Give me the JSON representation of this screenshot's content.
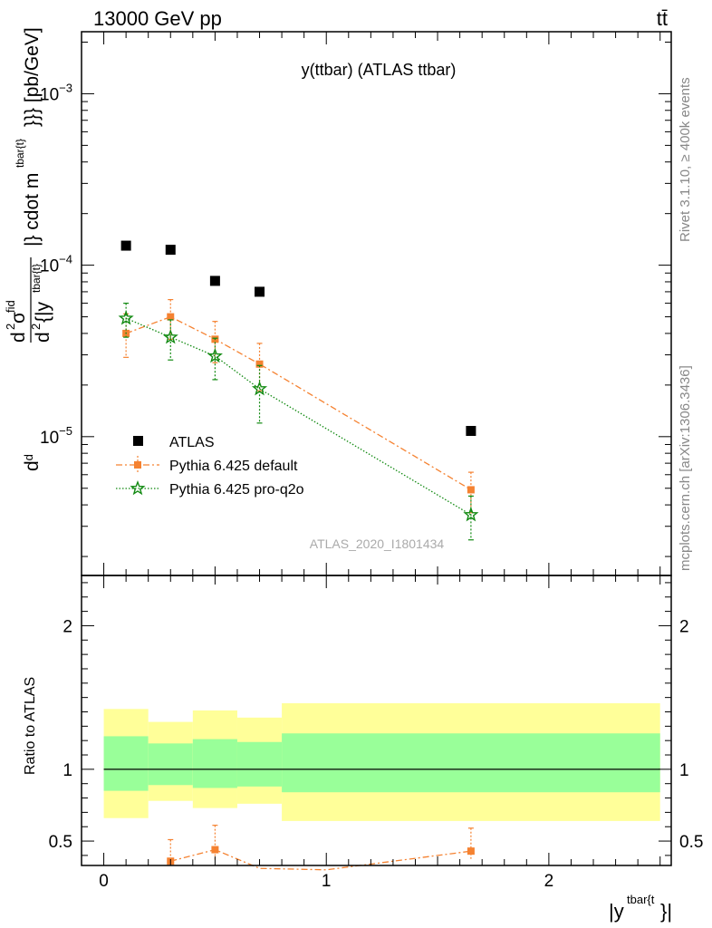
{
  "header": {
    "left": "13000 GeV pp",
    "right": "tt̄"
  },
  "side_labels": {
    "rivet": "Rivet 3.1.10, ≥ 400k events",
    "mcplots": "mcplots.cern.ch [arXiv:1306.3436]"
  },
  "chart_data": [
    {
      "type": "scatter",
      "title": "y(ttbar) (ATLAS ttbar)",
      "watermark": "ATLAS_2020_I1801434",
      "ylabel": {
        "d": "d",
        "d2": "d",
        "sigma": "σ",
        "fid": "fid",
        "two": "2",
        "rest": "{|y",
        "sup1": "tbar{t}",
        "closing": "|} cdot m",
        "sup2": "tbar{t}",
        "units": "}}} [pb/GeV]"
      },
      "yscale": "log",
      "xlim": [
        -0.1,
        2.55
      ],
      "ylim": [
        1.55e-06,
        0.0023
      ],
      "yticks": [
        {
          "value": 1e-05,
          "mantissa": "10",
          "exponent": "−5"
        },
        {
          "value": 0.0001,
          "mantissa": "10",
          "exponent": "−4"
        },
        {
          "value": 0.001,
          "mantissa": "10",
          "exponent": "−3"
        }
      ],
      "legend_position": "lower-left",
      "series": [
        {
          "name": "ATLAS",
          "color": "#000000",
          "marker": "square",
          "x": [
            0.1,
            0.3,
            0.5,
            0.7,
            1.65
          ],
          "y": [
            0.00013,
            0.000123,
            8.1e-05,
            7e-05,
            1.08e-05
          ],
          "yerr_low": [
            0,
            0,
            0,
            0,
            0
          ],
          "yerr_high": [
            0,
            0,
            0,
            0,
            0
          ]
        },
        {
          "name": "Pythia 6.425 default",
          "color": "#f58231",
          "marker": "square",
          "line": "dashdot",
          "x": [
            0.1,
            0.3,
            0.5,
            0.7,
            1.65
          ],
          "y": [
            4e-05,
            5e-05,
            3.7e-05,
            2.65e-05,
            4.9e-06
          ],
          "yerr_low": [
            1.1e-05,
            1.3e-05,
            1e-05,
            8e-06,
            1.3e-06
          ],
          "yerr_high": [
            1.2e-05,
            1.3e-05,
            1e-05,
            8.5e-06,
            1.3e-06
          ]
        },
        {
          "name": "Pythia 6.425 pro-q2o",
          "color": "#128a12",
          "marker": "star",
          "line": "dotted",
          "x": [
            0.1,
            0.3,
            0.5,
            0.7,
            1.65
          ],
          "y": [
            4.9e-05,
            3.8e-05,
            2.95e-05,
            1.9e-05,
            3.5e-06
          ],
          "yerr_low": [
            1.1e-05,
            1e-05,
            8e-06,
            7e-06,
            1e-06
          ],
          "yerr_high": [
            1.1e-05,
            1e-05,
            8e-06,
            7e-06,
            1e-06
          ]
        }
      ]
    },
    {
      "type": "scatter",
      "ylabel": "Ratio to ATLAS",
      "xlabel": {
        "main": "|y",
        "sup": "tbar{t",
        "tail": "}|"
      },
      "xlim": [
        -0.1,
        2.55
      ],
      "ylim": [
        0.33,
        2.35
      ],
      "xticks": [
        {
          "value": 0,
          "label": "0"
        },
        {
          "value": 1,
          "label": "1"
        },
        {
          "value": 2,
          "label": "2"
        }
      ],
      "yticks": [
        {
          "value": 0.5,
          "label": "0.5"
        },
        {
          "value": 1,
          "label": "1"
        },
        {
          "value": 2,
          "label": "2"
        }
      ],
      "bands": [
        {
          "x0": 0.0,
          "x1": 0.2,
          "yellow": [
            0.66,
            1.42
          ],
          "green": [
            0.85,
            1.23
          ]
        },
        {
          "x0": 0.2,
          "x1": 0.4,
          "yellow": [
            0.78,
            1.33
          ],
          "green": [
            0.89,
            1.18
          ]
        },
        {
          "x0": 0.4,
          "x1": 0.6,
          "yellow": [
            0.73,
            1.41
          ],
          "green": [
            0.87,
            1.21
          ]
        },
        {
          "x0": 0.6,
          "x1": 0.8,
          "yellow": [
            0.76,
            1.36
          ],
          "green": [
            0.88,
            1.19
          ]
        },
        {
          "x0": 0.8,
          "x1": 2.5,
          "yellow": [
            0.64,
            1.46
          ],
          "green": [
            0.84,
            1.25
          ]
        }
      ],
      "series": [
        {
          "name": "Pythia 6.425 default",
          "color": "#f58231",
          "marker": "square",
          "line": "dashdot",
          "x": [
            0.3,
            0.5,
            0.7,
            1.0,
            1.65
          ],
          "y": [
            0.36,
            0.44,
            0.31,
            0.3,
            0.43
          ],
          "yerr_low": [
            0.04,
            0.07,
            0,
            0,
            0.06
          ],
          "yerr_high": [
            0.15,
            0.17,
            0,
            0,
            0.16
          ]
        }
      ]
    }
  ]
}
